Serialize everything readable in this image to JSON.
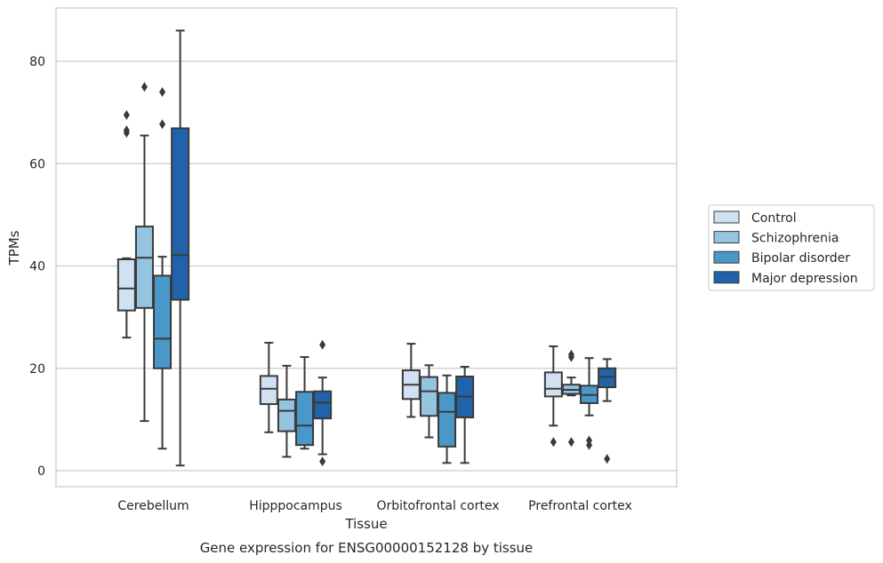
{
  "chart_data": {
    "type": "box",
    "caption": "Gene expression for ENSG00000152128 by tissue",
    "xlabel": "Tissue",
    "ylabel": "TPMs",
    "ylim": [
      -3,
      91
    ],
    "yticks": [
      0,
      20,
      40,
      60,
      80
    ],
    "grid": true,
    "legend_position": "right",
    "categories": [
      "Cerebellum",
      "Hipppocampus",
      "Orbitofrontal cortex",
      "Prefrontal cortex"
    ],
    "series": [
      {
        "name": "Control",
        "color": "#d0e1f2",
        "boxes": [
          {
            "whislo": 26,
            "q1": 31.3,
            "med": 35.6,
            "q3": 41.3,
            "whishi": 41.5,
            "fliers": [
              66,
              66.5,
              69.5
            ]
          },
          {
            "whislo": 7.5,
            "q1": 13,
            "med": 16,
            "q3": 18.5,
            "whishi": 25,
            "fliers": []
          },
          {
            "whislo": 10.5,
            "q1": 14,
            "med": 16.8,
            "q3": 19.6,
            "whishi": 24.8,
            "fliers": []
          },
          {
            "whislo": 8.8,
            "q1": 14.5,
            "med": 16,
            "q3": 19.2,
            "whishi": 24.3,
            "fliers": [
              5.6
            ]
          }
        ]
      },
      {
        "name": "Schizophrenia",
        "color": "#94c4df",
        "boxes": [
          {
            "whislo": 9.7,
            "q1": 31.8,
            "med": 41.6,
            "q3": 47.7,
            "whishi": 65.5,
            "fliers": [
              75
            ]
          },
          {
            "whislo": 2.7,
            "q1": 7.7,
            "med": 11.7,
            "q3": 13.9,
            "whishi": 20.5,
            "fliers": []
          },
          {
            "whislo": 6.5,
            "q1": 10.7,
            "med": 15.5,
            "q3": 18.3,
            "whishi": 20.6,
            "fliers": []
          },
          {
            "whislo": 14.7,
            "q1": 15,
            "med": 15.8,
            "q3": 16.8,
            "whishi": 18.2,
            "fliers": [
              5.6,
              22.2,
              22.7
            ]
          }
        ]
      },
      {
        "name": "Bipolar disorder",
        "color": "#4a98c9",
        "boxes": [
          {
            "whislo": 4.3,
            "q1": 20,
            "med": 25.8,
            "q3": 38.1,
            "whishi": 41.8,
            "fliers": [
              67.7,
              74
            ]
          },
          {
            "whislo": 4.3,
            "q1": 5,
            "med": 8.8,
            "q3": 15.4,
            "whishi": 22.2,
            "fliers": []
          },
          {
            "whislo": 1.5,
            "q1": 4.7,
            "med": 11.5,
            "q3": 15.2,
            "whishi": 18.6,
            "fliers": []
          },
          {
            "whislo": 10.8,
            "q1": 13.2,
            "med": 14.8,
            "q3": 16.6,
            "whishi": 22,
            "fliers": [
              5,
              5.9
            ]
          }
        ]
      },
      {
        "name": "Major depression",
        "color": "#2163aa",
        "boxes": [
          {
            "whislo": 1,
            "q1": 33.4,
            "med": 42.1,
            "q3": 66.9,
            "whishi": 86,
            "fliers": []
          },
          {
            "whislo": 3.2,
            "q1": 10.2,
            "med": 13.3,
            "q3": 15.5,
            "whishi": 18.2,
            "fliers": [
              1.8,
              24.6
            ]
          },
          {
            "whislo": 1.5,
            "q1": 10.4,
            "med": 14.5,
            "q3": 18.4,
            "whishi": 20.3,
            "fliers": []
          },
          {
            "whislo": 13.6,
            "q1": 16.3,
            "med": 18.3,
            "q3": 20,
            "whishi": 21.8,
            "fliers": [
              2.3
            ]
          }
        ]
      }
    ]
  }
}
